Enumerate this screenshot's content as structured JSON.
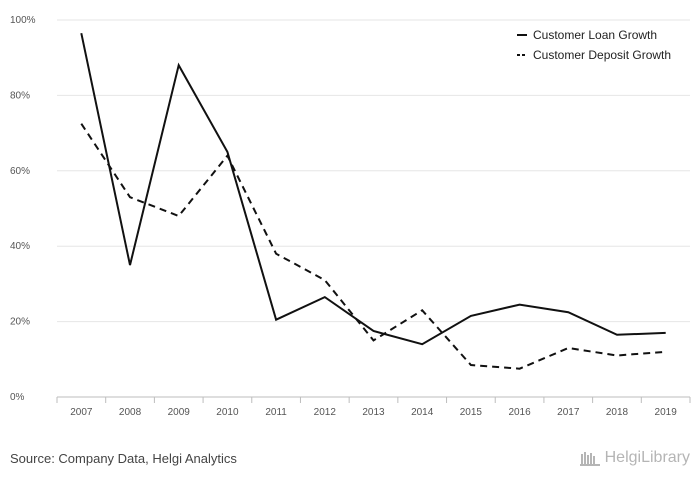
{
  "chart_data": {
    "type": "line",
    "categories": [
      "2007",
      "2008",
      "2009",
      "2010",
      "2011",
      "2012",
      "2013",
      "2014",
      "2015",
      "2016",
      "2017",
      "2018",
      "2019"
    ],
    "series": [
      {
        "name": "Customer Loan Growth",
        "style": "solid",
        "values": [
          96.5,
          35.0,
          88.0,
          65.0,
          20.5,
          26.5,
          17.5,
          14.0,
          21.5,
          24.5,
          22.5,
          16.5,
          17.0
        ]
      },
      {
        "name": "Customer Deposit Growth",
        "style": "dashed",
        "values": [
          72.5,
          53.0,
          48.0,
          64.0,
          38.0,
          31.0,
          15.0,
          23.0,
          8.5,
          7.5,
          13.0,
          11.0,
          12.0
        ]
      }
    ],
    "y_ticks": [
      "0%",
      "20%",
      "40%",
      "60%",
      "80%",
      "100%"
    ],
    "ylim": [
      0,
      100
    ],
    "line_color": "#111111",
    "grid": true,
    "legend_position": "top-right"
  },
  "footer": {
    "source": "Source: Company Data, Helgi Analytics",
    "brand": "HelgiLibrary"
  }
}
